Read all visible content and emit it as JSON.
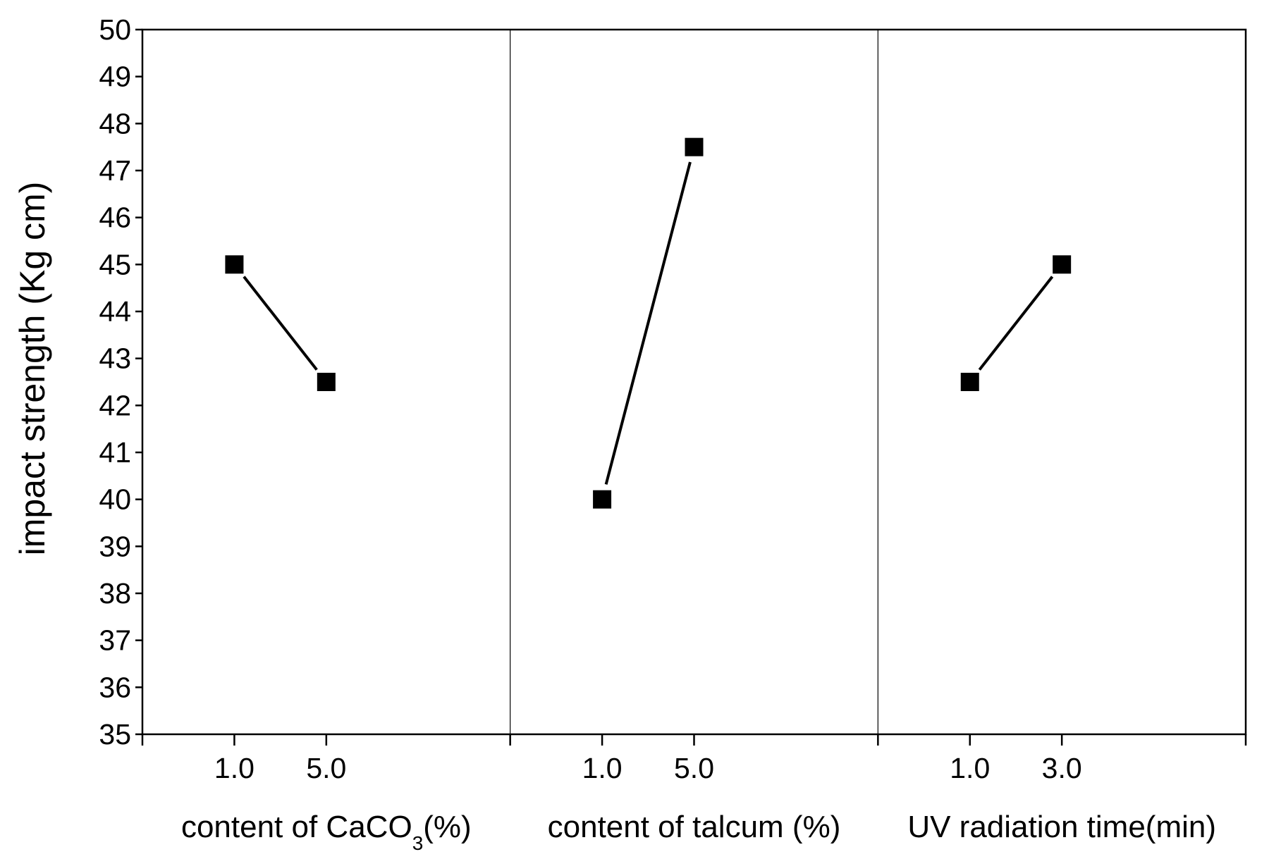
{
  "chart_data": {
    "type": "line",
    "title": "",
    "ylabel": "impact strength (Kg cm)",
    "ylim": [
      35,
      50
    ],
    "yticks": [
      35,
      36,
      37,
      38,
      39,
      40,
      41,
      42,
      43,
      44,
      45,
      46,
      47,
      48,
      49,
      50
    ],
    "grid": false,
    "marker": "filled-square",
    "colors": {
      "line": "#000000",
      "marker": "#000000",
      "axis": "#000000"
    },
    "panels": [
      {
        "xlabel_main": "content of CaCO",
        "xlabel_sub": "3",
        "xlabel_tail": "(%)",
        "categories": [
          "1.0",
          "5.0"
        ],
        "values": [
          45,
          42.5
        ]
      },
      {
        "xlabel_main": "content of talcum (%)",
        "categories": [
          "1.0",
          "5.0"
        ],
        "values": [
          40,
          47.5
        ]
      },
      {
        "xlabel_main": "UV radiation time(min)",
        "categories": [
          "1.0",
          "3.0"
        ],
        "values": [
          42.5,
          45
        ]
      }
    ]
  }
}
